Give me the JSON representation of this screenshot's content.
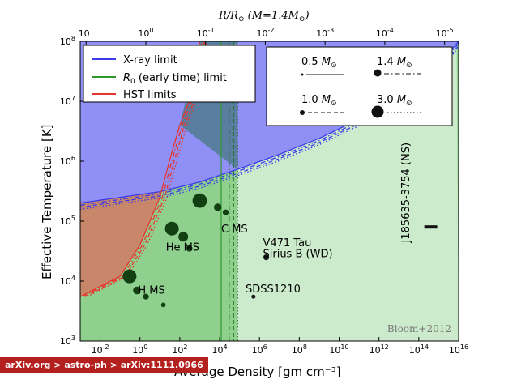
{
  "chart_data": {
    "type": "area",
    "title": "R/R⊙ (M=1.4M⊙)",
    "xlabel": "Average Density [gm cm⁻³]",
    "ylabel": "Effective Temperature [K]",
    "x_scale": "log",
    "y_scale": "log",
    "xlim": [
      0.001,
      1e+16
    ],
    "ylim": [
      1000.0,
      100000000.0
    ],
    "x_ticks": [
      {
        "value": 0.01,
        "base": "10",
        "exp": "-2"
      },
      {
        "value": 1.0,
        "base": "10",
        "exp": "0"
      },
      {
        "value": 100.0,
        "base": "10",
        "exp": "2"
      },
      {
        "value": 10000.0,
        "base": "10",
        "exp": "4"
      },
      {
        "value": 1000000.0,
        "base": "10",
        "exp": "6"
      },
      {
        "value": 100000000.0,
        "base": "10",
        "exp": "8"
      },
      {
        "value": 10000000000.0,
        "base": "10",
        "exp": "10"
      },
      {
        "value": 1000000000000.0,
        "base": "10",
        "exp": "12"
      },
      {
        "value": 100000000000000.0,
        "base": "10",
        "exp": "14"
      },
      {
        "value": 1e+16,
        "base": "10",
        "exp": "16"
      }
    ],
    "y_ticks": [
      {
        "value": 1000.0,
        "base": "10",
        "exp": "3"
      },
      {
        "value": 10000.0,
        "base": "10",
        "exp": "4"
      },
      {
        "value": 100000.0,
        "base": "10",
        "exp": "5"
      },
      {
        "value": 1000000.0,
        "base": "10",
        "exp": "6"
      },
      {
        "value": 10000000.0,
        "base": "10",
        "exp": "7"
      },
      {
        "value": 100000000.0,
        "base": "10",
        "exp": "8"
      }
    ],
    "top_axis": {
      "label_r": "R/R",
      "label_m": "(M=1.4M",
      "close": ")",
      "ticks": [
        {
          "ratio": 10,
          "base": "10",
          "exp": "1"
        },
        {
          "ratio": 1,
          "base": "10",
          "exp": "0"
        },
        {
          "ratio": 0.1,
          "base": "10",
          "exp": "-1"
        },
        {
          "ratio": 0.01,
          "base": "10",
          "exp": "-2"
        },
        {
          "ratio": 0.001,
          "base": "10",
          "exp": "-3"
        },
        {
          "ratio": 0.0001,
          "base": "10",
          "exp": "-4"
        },
        {
          "ratio": 1e-05,
          "base": "10",
          "exp": "-5"
        }
      ]
    },
    "series": [
      {
        "name": "X-ray limit",
        "color": "#3a3ae8",
        "fill": "#8f8ff5",
        "points": [
          [
            0.001,
            200000.0
          ],
          [
            10.0,
            310000.0
          ],
          [
            1000.0,
            450000.0
          ],
          [
            100000.0,
            750000.0
          ],
          [
            10000000.0,
            1300000.0
          ],
          [
            1000000000.0,
            2400000.0
          ],
          [
            100000000000.0,
            5000000.0
          ],
          [
            10000000000000.0,
            12000000.0
          ],
          [
            1000000000000000.0,
            40000000.0
          ],
          [
            1e+16,
            100000000.0
          ]
        ]
      },
      {
        "name": "R₀ (early time) limit",
        "color": "#2e9a2e",
        "fill": "#8fd08f",
        "x_limits": [
          12000.0,
          30000.0,
          50000.0,
          80000.0
        ]
      },
      {
        "name": "HST limits",
        "color": "#e8342e",
        "fill": "#c8866a",
        "points": [
          [
            0.001,
            5500.0
          ],
          [
            0.1,
            12000.0
          ],
          [
            1.0,
            40000.0
          ],
          [
            10.0,
            250000.0
          ],
          [
            30.0,
            1000000.0
          ],
          [
            100.0,
            4000000.0
          ],
          [
            300.0,
            10000000.0
          ],
          [
            1000.0,
            100000000.0
          ]
        ]
      }
    ],
    "legend": {
      "entries": [
        {
          "text": "X-ray limit",
          "color": "#3a3ae8"
        },
        {
          "sym": "R",
          "sub": "0",
          "text": " (early time) limit",
          "color": "#2e9a2e"
        },
        {
          "text": "HST limits",
          "color": "#e8342e"
        }
      ],
      "mass_entries": [
        {
          "value": "0.5",
          "unit": "M",
          "dash": "solid"
        },
        {
          "value": "1.4",
          "unit": "M",
          "dash": "dashdot"
        },
        {
          "value": "1.0",
          "unit": "M",
          "dash": "dashed"
        },
        {
          "value": "3.0",
          "unit": "M",
          "dash": "dotted"
        }
      ]
    },
    "points": [
      {
        "x": 0.3,
        "y": 12000.0,
        "size": 1.0
      },
      {
        "x": 0.7,
        "y": 7000.0,
        "size": 0.45
      },
      {
        "x": 2.0,
        "y": 5500.0,
        "size": 0.3
      },
      {
        "x": 15.0,
        "y": 4000.0,
        "size": 0.2
      },
      {
        "x": 40.0,
        "y": 75000.0,
        "size": 1.0
      },
      {
        "x": 150.0,
        "y": 55000.0,
        "size": 0.65
      },
      {
        "x": 300.0,
        "y": 35000.0,
        "size": 0.35
      },
      {
        "x": 1000.0,
        "y": 220000.0,
        "size": 1.05
      },
      {
        "x": 8000.0,
        "y": 170000.0,
        "size": 0.45
      },
      {
        "x": 20000.0,
        "y": 140000.0,
        "size": 0.3
      }
    ],
    "annotations": [
      {
        "text": "H MS",
        "x": 0.8,
        "y": 6200.0
      },
      {
        "text": "He MS",
        "x": 20.0,
        "y": 32000.0
      },
      {
        "text": "C MS",
        "x": 12000.0,
        "y": 65000.0
      },
      {
        "text": "V471 Tau",
        "x": 1500000.0,
        "y": 38000.0
      },
      {
        "text": "Sirius B (WD)",
        "x": 1500000.0,
        "y": 25000.0
      },
      {
        "text": "SDSS1210",
        "x": 200000.0,
        "y": 6500.0
      },
      {
        "text": "J185635-3754 (NS)",
        "x": 100000000000000.0,
        "y": 300000.0,
        "rotated": true
      }
    ],
    "labeled_points": [
      {
        "x": 2200000.0,
        "y": 25000.0,
        "size": 0.3
      },
      {
        "x": 500000.0,
        "y": 5500.0,
        "size": 0.15
      }
    ],
    "ns_marker": {
      "x": 400000000000000.0,
      "y": 80000.0
    },
    "credit": "Bloom+2012"
  },
  "breadcrumb": {
    "site": "arXiv.org",
    "sep1": " > ",
    "section": "astro-ph",
    "sep2": " > ",
    "paper": "arXiv:1111.0966"
  }
}
